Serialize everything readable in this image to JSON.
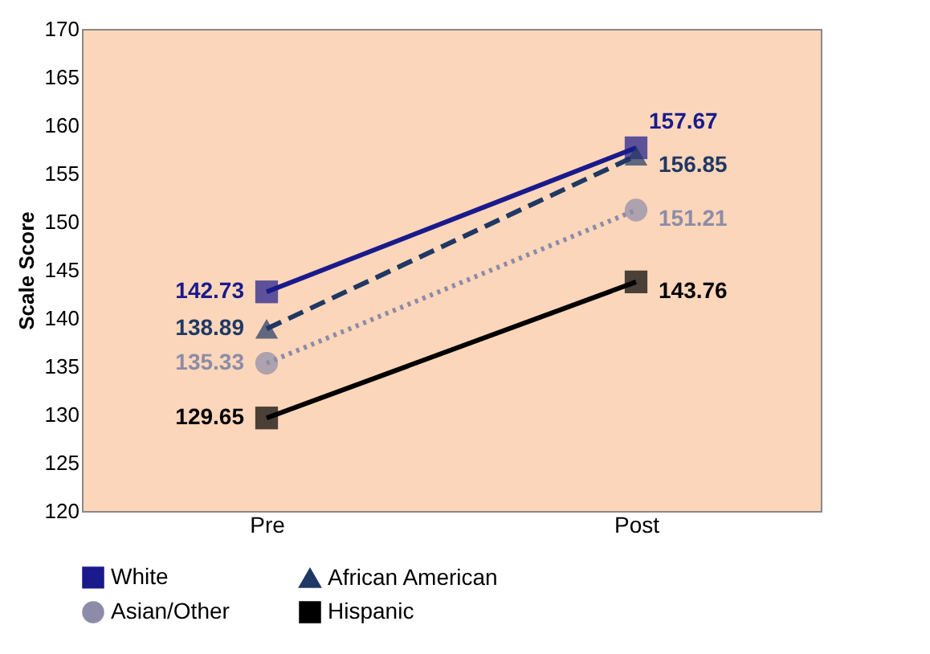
{
  "chart_data": {
    "type": "line",
    "ylabel": "Scale Score",
    "categories": [
      "Pre",
      "Post"
    ],
    "ylim": [
      120,
      170
    ],
    "yticks": [
      120,
      125,
      130,
      135,
      140,
      145,
      150,
      155,
      160,
      165,
      170
    ],
    "grid": false,
    "legend": "bottom",
    "data_labels": true,
    "series": [
      {
        "name": "White",
        "color": "#1a1a8c",
        "values": [
          142.73,
          157.67
        ],
        "marker": "square",
        "line_style": "solid"
      },
      {
        "name": "African American",
        "color": "#1f3864",
        "values": [
          138.89,
          156.85
        ],
        "marker": "triangle",
        "line_style": "dashed"
      },
      {
        "name": "Asian/Other",
        "color": "#8c8ca8",
        "values": [
          135.33,
          151.21
        ],
        "marker": "circle",
        "line_style": "dotted"
      },
      {
        "name": "Hispanic",
        "color": "#000000",
        "values": [
          129.65,
          143.76
        ],
        "marker": "square",
        "line_style": "solid"
      }
    ]
  }
}
